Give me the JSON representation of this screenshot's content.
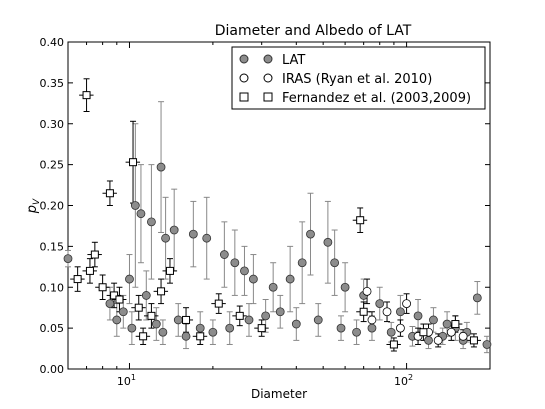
{
  "chart_data": {
    "type": "scatter",
    "title": "Diameter and Albedo of LAT",
    "xlabel": "Diameter",
    "ylabel": "p_V",
    "ylabel_main": "p",
    "ylabel_sub": "V",
    "xscale": "log",
    "xlim": [
      6.0,
      200.0
    ],
    "ylim": [
      0.0,
      0.4
    ],
    "xticks": [
      {
        "value": 10,
        "base": "10",
        "exp": "1"
      },
      {
        "value": 100,
        "base": "10",
        "exp": "2"
      }
    ],
    "yticks": [
      {
        "value": 0.0,
        "label": "0.00"
      },
      {
        "value": 0.05,
        "label": "0.05"
      },
      {
        "value": 0.1,
        "label": "0.10"
      },
      {
        "value": 0.15,
        "label": "0.15"
      },
      {
        "value": 0.2,
        "label": "0.20"
      },
      {
        "value": 0.25,
        "label": "0.25"
      },
      {
        "value": 0.3,
        "label": "0.30"
      },
      {
        "value": 0.35,
        "label": "0.35"
      },
      {
        "value": 0.4,
        "label": "0.40"
      }
    ],
    "grid": false,
    "legend_position": "top-right",
    "series": [
      {
        "name": "LAT",
        "marker": "circle",
        "fill": "#8c8c8c",
        "edge": "#333333",
        "errcolor": "#888888",
        "points": [
          [
            6.0,
            0.135,
            0.01
          ],
          [
            10.5,
            0.2,
            0.1
          ],
          [
            13.0,
            0.247,
            0.08
          ],
          [
            12.0,
            0.18,
            0.07
          ],
          [
            11.0,
            0.19,
            0.06
          ],
          [
            14.5,
            0.17,
            0.05
          ],
          [
            13.5,
            0.16,
            0.05
          ],
          [
            17.0,
            0.165,
            0.04
          ],
          [
            19.0,
            0.16,
            0.05
          ],
          [
            22.0,
            0.14,
            0.04
          ],
          [
            24.0,
            0.13,
            0.04
          ],
          [
            26.0,
            0.12,
            0.03
          ],
          [
            28.0,
            0.11,
            0.03
          ],
          [
            33.0,
            0.1,
            0.03
          ],
          [
            38.0,
            0.11,
            0.04
          ],
          [
            42.0,
            0.13,
            0.05
          ],
          [
            45.0,
            0.165,
            0.05
          ],
          [
            52.0,
            0.155,
            0.05
          ],
          [
            55.0,
            0.13,
            0.04
          ],
          [
            60.0,
            0.1,
            0.03
          ],
          [
            70.0,
            0.09,
            0.02
          ],
          [
            80.0,
            0.08,
            0.02
          ],
          [
            95.0,
            0.07,
            0.02
          ],
          [
            110.0,
            0.065,
            0.02
          ],
          [
            125.0,
            0.06,
            0.015
          ],
          [
            140.0,
            0.055,
            0.015
          ],
          [
            150.0,
            0.05,
            0.015
          ],
          [
            165.0,
            0.045,
            0.012
          ],
          [
            180.0,
            0.087,
            0.02
          ],
          [
            195.0,
            0.03,
            0.01
          ],
          [
            9.0,
            0.06,
            0.02
          ],
          [
            8.5,
            0.08,
            0.02
          ],
          [
            9.5,
            0.07,
            0.02
          ],
          [
            10.0,
            0.11,
            0.03
          ],
          [
            10.2,
            0.05,
            0.02
          ],
          [
            11.5,
            0.09,
            0.03
          ],
          [
            12.5,
            0.055,
            0.02
          ],
          [
            13.2,
            0.045,
            0.015
          ],
          [
            15.0,
            0.06,
            0.02
          ],
          [
            16.0,
            0.04,
            0.015
          ],
          [
            18.0,
            0.05,
            0.02
          ],
          [
            20.0,
            0.045,
            0.015
          ],
          [
            23.0,
            0.05,
            0.02
          ],
          [
            27.0,
            0.06,
            0.02
          ],
          [
            31.0,
            0.065,
            0.02
          ],
          [
            35.0,
            0.07,
            0.02
          ],
          [
            40.0,
            0.055,
            0.02
          ],
          [
            48.0,
            0.06,
            0.02
          ],
          [
            58.0,
            0.05,
            0.015
          ],
          [
            66.0,
            0.045,
            0.015
          ],
          [
            75.0,
            0.05,
            0.015
          ],
          [
            88.0,
            0.045,
            0.012
          ],
          [
            105.0,
            0.04,
            0.012
          ],
          [
            120.0,
            0.035,
            0.01
          ],
          [
            135.0,
            0.04,
            0.01
          ],
          [
            160.0,
            0.035,
            0.01
          ]
        ]
      },
      {
        "name": "IRAS (Ryan et al. 2010)",
        "marker": "circle",
        "fill": "#ffffff",
        "edge": "#000000",
        "errcolor": "#000000",
        "points": [
          [
            72.0,
            0.095,
            0.015
          ],
          [
            75.0,
            0.06,
            0.01
          ],
          [
            85.0,
            0.07,
            0.012
          ],
          [
            95.0,
            0.05,
            0.01
          ],
          [
            100.0,
            0.08,
            0.012
          ],
          [
            110.0,
            0.04,
            0.01
          ],
          [
            120.0,
            0.045,
            0.01
          ],
          [
            130.0,
            0.035,
            0.008
          ],
          [
            145.0,
            0.045,
            0.01
          ],
          [
            160.0,
            0.04,
            0.008
          ]
        ]
      },
      {
        "name": "Fernandez et al. (2003,2009)",
        "marker": "square",
        "fill": "#ffffff",
        "edge": "#000000",
        "errcolor": "#000000",
        "points": [
          [
            7.0,
            0.335,
            0.02
          ],
          [
            8.5,
            0.215,
            0.015
          ],
          [
            10.3,
            0.253,
            0.05
          ],
          [
            68.0,
            0.182,
            0.015
          ],
          [
            6.5,
            0.11,
            0.015
          ],
          [
            7.2,
            0.12,
            0.015
          ],
          [
            7.5,
            0.14,
            0.015
          ],
          [
            8.0,
            0.1,
            0.015
          ],
          [
            8.8,
            0.09,
            0.015
          ],
          [
            9.2,
            0.085,
            0.015
          ],
          [
            10.8,
            0.075,
            0.015
          ],
          [
            11.2,
            0.04,
            0.01
          ],
          [
            12.0,
            0.065,
            0.015
          ],
          [
            13.0,
            0.095,
            0.015
          ],
          [
            14.0,
            0.12,
            0.015
          ],
          [
            16.0,
            0.06,
            0.015
          ],
          [
            18.0,
            0.04,
            0.01
          ],
          [
            21.0,
            0.08,
            0.012
          ],
          [
            25.0,
            0.065,
            0.012
          ],
          [
            30.0,
            0.05,
            0.01
          ],
          [
            70.0,
            0.07,
            0.012
          ],
          [
            90.0,
            0.03,
            0.008
          ],
          [
            115.0,
            0.045,
            0.01
          ],
          [
            150.0,
            0.055,
            0.01
          ],
          [
            175.0,
            0.035,
            0.008
          ]
        ]
      }
    ]
  }
}
